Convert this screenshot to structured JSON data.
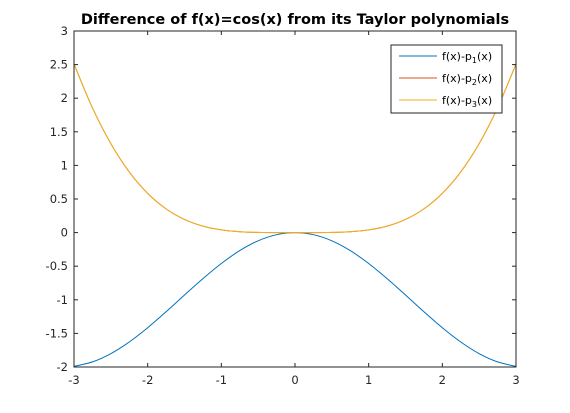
{
  "chart_data": {
    "type": "line",
    "title": "Difference of f(x)=cos(x) from its Taylor polynomials",
    "xlabel": "",
    "ylabel": "",
    "xlim": [
      -3,
      3
    ],
    "ylim": [
      -2,
      3
    ],
    "xticks": [
      -3,
      -2,
      -1,
      0,
      1,
      2,
      3
    ],
    "xtick_labels": [
      "-3",
      "-2",
      "-1",
      "0",
      "1",
      "2",
      "3"
    ],
    "yticks": [
      -2,
      -1.5,
      -1,
      -0.5,
      0,
      0.5,
      1,
      1.5,
      2,
      2.5,
      3
    ],
    "ytick_labels": [
      "-2",
      "-1.5",
      "-1",
      "-0.5",
      "0",
      "0.5",
      "1",
      "1.5",
      "2",
      "2.5",
      "3"
    ],
    "grid": false,
    "legend_position": "top-right",
    "x": [
      -3,
      -2.75,
      -2.5,
      -2.25,
      -2,
      -1.75,
      -1.5,
      -1.25,
      -1,
      -0.75,
      -0.5,
      -0.25,
      0,
      0.25,
      0.5,
      0.75,
      1,
      1.25,
      1.5,
      1.75,
      2,
      2.25,
      2.5,
      2.75,
      3
    ],
    "series": [
      {
        "name": "f(x)-p_1(x)",
        "legend_main": "f(x)-p",
        "legend_sub": "1",
        "legend_tail": "(x)",
        "color": "#0072BD",
        "values": [
          -1.99,
          -1.924,
          -1.801,
          -1.628,
          -1.416,
          -1.178,
          -0.929,
          -0.685,
          -0.46,
          -0.268,
          -0.122,
          -0.031,
          0,
          -0.031,
          -0.122,
          -0.268,
          -0.46,
          -0.685,
          -0.929,
          -1.178,
          -1.416,
          -1.628,
          -1.801,
          -1.924,
          -1.99
        ]
      },
      {
        "name": "f(x)-p_2(x)",
        "legend_main": "f(x)-p",
        "legend_sub": "2",
        "legend_tail": "(x)",
        "color": "#D95319",
        "values": [
          2.51,
          1.857,
          1.324,
          0.903,
          0.584,
          0.353,
          0.196,
          0.096,
          0.04,
          0.013,
          0.003,
          0,
          0,
          0,
          0.003,
          0.013,
          0.04,
          0.096,
          0.196,
          0.353,
          0.584,
          0.903,
          1.324,
          1.857,
          2.51
        ]
      },
      {
        "name": "f(x)-p_3(x)",
        "legend_main": "f(x)-p",
        "legend_sub": "3",
        "legend_tail": "(x)",
        "color": "#EDB120",
        "values": [
          2.51,
          1.857,
          1.324,
          0.903,
          0.584,
          0.353,
          0.196,
          0.096,
          0.04,
          0.013,
          0.003,
          0,
          0,
          0,
          0.003,
          0.013,
          0.04,
          0.096,
          0.196,
          0.353,
          0.584,
          0.903,
          1.324,
          1.857,
          2.51
        ]
      }
    ]
  }
}
